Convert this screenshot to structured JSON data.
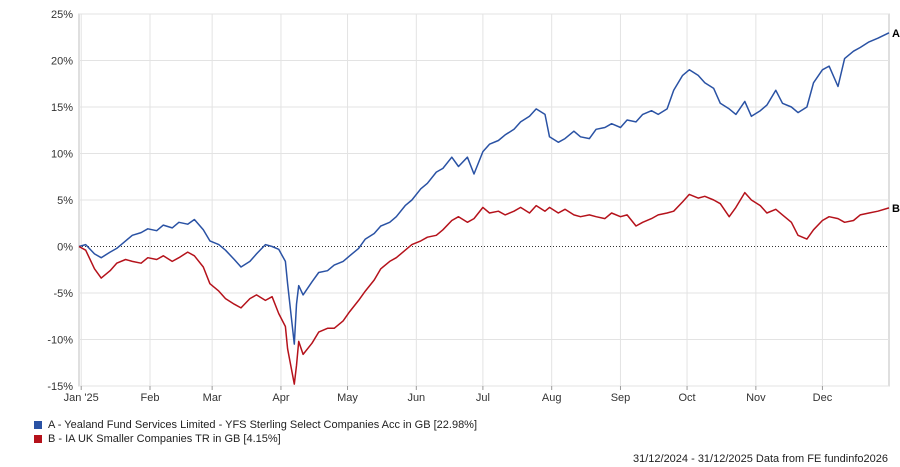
{
  "chart_data": {
    "type": "line",
    "ylim": [
      -15,
      25
    ],
    "y_ticks": [
      "-15%",
      "-10%",
      "-5%",
      "0%",
      "5%",
      "10%",
      "15%",
      "20%",
      "25%"
    ],
    "y_tick_values": [
      -15,
      -10,
      -5,
      0,
      5,
      10,
      15,
      20,
      25
    ],
    "x_ticks": [
      "Jan '25",
      "Feb",
      "Mar",
      "Apr",
      "May",
      "Jun",
      "Jul",
      "Aug",
      "Sep",
      "Oct",
      "Nov",
      "Dec"
    ],
    "x_tick_dates": [
      "2025-01-01",
      "2025-02-01",
      "2025-03-01",
      "2025-04-01",
      "2025-05-01",
      "2025-06-01",
      "2025-07-01",
      "2025-08-01",
      "2025-09-01",
      "2025-10-01",
      "2025-11-01",
      "2025-12-01"
    ],
    "xlim": [
      "2024-12-31",
      "2025-12-31"
    ],
    "grid": true,
    "legend_position": "bottom-left",
    "series": [
      {
        "name": "A - Yealand Fund Services Limited - YFS Sterling Select Companies Acc in GB [22.98%]",
        "end_label": "A",
        "color": "#2a52a4",
        "points": [
          [
            "2024-12-31",
            0.0
          ],
          [
            "2025-01-03",
            0.2
          ],
          [
            "2025-01-07",
            -0.8
          ],
          [
            "2025-01-10",
            -1.2
          ],
          [
            "2025-01-14",
            -0.6
          ],
          [
            "2025-01-17",
            -0.2
          ],
          [
            "2025-01-21",
            0.6
          ],
          [
            "2025-01-24",
            1.2
          ],
          [
            "2025-01-28",
            1.5
          ],
          [
            "2025-01-31",
            1.9
          ],
          [
            "2025-02-04",
            1.7
          ],
          [
            "2025-02-07",
            2.3
          ],
          [
            "2025-02-11",
            2.0
          ],
          [
            "2025-02-14",
            2.6
          ],
          [
            "2025-02-18",
            2.4
          ],
          [
            "2025-02-21",
            2.9
          ],
          [
            "2025-02-25",
            1.8
          ],
          [
            "2025-02-28",
            0.6
          ],
          [
            "2025-03-04",
            0.2
          ],
          [
            "2025-03-07",
            -0.4
          ],
          [
            "2025-03-11",
            -1.4
          ],
          [
            "2025-03-14",
            -2.2
          ],
          [
            "2025-03-18",
            -1.6
          ],
          [
            "2025-03-21",
            -0.8
          ],
          [
            "2025-03-25",
            0.2
          ],
          [
            "2025-03-28",
            0.0
          ],
          [
            "2025-03-31",
            -0.3
          ],
          [
            "2025-04-03",
            -1.6
          ],
          [
            "2025-04-04",
            -4.0
          ],
          [
            "2025-04-07",
            -10.5
          ],
          [
            "2025-04-08",
            -6.2
          ],
          [
            "2025-04-09",
            -4.2
          ],
          [
            "2025-04-11",
            -5.2
          ],
          [
            "2025-04-15",
            -3.8
          ],
          [
            "2025-04-18",
            -2.8
          ],
          [
            "2025-04-22",
            -2.6
          ],
          [
            "2025-04-25",
            -2.0
          ],
          [
            "2025-04-29",
            -1.6
          ],
          [
            "2025-05-02",
            -1.0
          ],
          [
            "2025-05-06",
            -0.2
          ],
          [
            "2025-05-09",
            0.8
          ],
          [
            "2025-05-13",
            1.4
          ],
          [
            "2025-05-16",
            2.2
          ],
          [
            "2025-05-20",
            2.6
          ],
          [
            "2025-05-23",
            3.2
          ],
          [
            "2025-05-27",
            4.4
          ],
          [
            "2025-05-30",
            5.0
          ],
          [
            "2025-06-03",
            6.2
          ],
          [
            "2025-06-06",
            6.8
          ],
          [
            "2025-06-10",
            8.0
          ],
          [
            "2025-06-13",
            8.4
          ],
          [
            "2025-06-17",
            9.6
          ],
          [
            "2025-06-20",
            8.6
          ],
          [
            "2025-06-24",
            9.6
          ],
          [
            "2025-06-27",
            7.8
          ],
          [
            "2025-07-01",
            10.2
          ],
          [
            "2025-07-04",
            11.0
          ],
          [
            "2025-07-08",
            11.4
          ],
          [
            "2025-07-11",
            12.0
          ],
          [
            "2025-07-15",
            12.6
          ],
          [
            "2025-07-18",
            13.4
          ],
          [
            "2025-07-22",
            14.0
          ],
          [
            "2025-07-25",
            14.8
          ],
          [
            "2025-07-29",
            14.2
          ],
          [
            "2025-07-31",
            11.8
          ],
          [
            "2025-08-04",
            11.2
          ],
          [
            "2025-08-07",
            11.6
          ],
          [
            "2025-08-11",
            12.4
          ],
          [
            "2025-08-14",
            11.8
          ],
          [
            "2025-08-18",
            11.6
          ],
          [
            "2025-08-21",
            12.6
          ],
          [
            "2025-08-25",
            12.8
          ],
          [
            "2025-08-28",
            13.2
          ],
          [
            "2025-09-01",
            12.8
          ],
          [
            "2025-09-04",
            13.6
          ],
          [
            "2025-09-08",
            13.4
          ],
          [
            "2025-09-11",
            14.2
          ],
          [
            "2025-09-15",
            14.6
          ],
          [
            "2025-09-18",
            14.2
          ],
          [
            "2025-09-22",
            14.8
          ],
          [
            "2025-09-25",
            16.8
          ],
          [
            "2025-09-29",
            18.4
          ],
          [
            "2025-10-02",
            19.0
          ],
          [
            "2025-10-06",
            18.4
          ],
          [
            "2025-10-09",
            17.6
          ],
          [
            "2025-10-13",
            17.0
          ],
          [
            "2025-10-16",
            15.4
          ],
          [
            "2025-10-20",
            14.8
          ],
          [
            "2025-10-23",
            14.2
          ],
          [
            "2025-10-27",
            15.6
          ],
          [
            "2025-10-30",
            14.0
          ],
          [
            "2025-11-03",
            14.6
          ],
          [
            "2025-11-06",
            15.2
          ],
          [
            "2025-11-10",
            16.8
          ],
          [
            "2025-11-13",
            15.4
          ],
          [
            "2025-11-17",
            15.0
          ],
          [
            "2025-11-20",
            14.4
          ],
          [
            "2025-11-24",
            15.0
          ],
          [
            "2025-11-27",
            17.6
          ],
          [
            "2025-12-01",
            19.0
          ],
          [
            "2025-12-04",
            19.4
          ],
          [
            "2025-12-08",
            17.2
          ],
          [
            "2025-12-11",
            20.2
          ],
          [
            "2025-12-15",
            21.0
          ],
          [
            "2025-12-18",
            21.4
          ],
          [
            "2025-12-22",
            22.0
          ],
          [
            "2025-12-26",
            22.4
          ],
          [
            "2025-12-31",
            22.98
          ]
        ]
      },
      {
        "name": "B - IA UK Smaller Companies TR in GB [4.15%]",
        "end_label": "B",
        "color": "#b5121b",
        "points": [
          [
            "2024-12-31",
            0.0
          ],
          [
            "2025-01-03",
            -0.4
          ],
          [
            "2025-01-07",
            -2.4
          ],
          [
            "2025-01-10",
            -3.4
          ],
          [
            "2025-01-14",
            -2.6
          ],
          [
            "2025-01-17",
            -1.8
          ],
          [
            "2025-01-21",
            -1.4
          ],
          [
            "2025-01-24",
            -1.6
          ],
          [
            "2025-01-28",
            -1.8
          ],
          [
            "2025-01-31",
            -1.2
          ],
          [
            "2025-02-04",
            -1.4
          ],
          [
            "2025-02-07",
            -1.0
          ],
          [
            "2025-02-11",
            -1.6
          ],
          [
            "2025-02-14",
            -1.2
          ],
          [
            "2025-02-18",
            -0.6
          ],
          [
            "2025-02-21",
            -1.0
          ],
          [
            "2025-02-25",
            -2.2
          ],
          [
            "2025-02-28",
            -4.0
          ],
          [
            "2025-03-04",
            -4.8
          ],
          [
            "2025-03-07",
            -5.6
          ],
          [
            "2025-03-11",
            -6.2
          ],
          [
            "2025-03-14",
            -6.6
          ],
          [
            "2025-03-18",
            -5.6
          ],
          [
            "2025-03-21",
            -5.2
          ],
          [
            "2025-03-25",
            -5.8
          ],
          [
            "2025-03-28",
            -5.4
          ],
          [
            "2025-03-31",
            -7.2
          ],
          [
            "2025-04-03",
            -8.6
          ],
          [
            "2025-04-04",
            -11.0
          ],
          [
            "2025-04-07",
            -14.8
          ],
          [
            "2025-04-08",
            -12.8
          ],
          [
            "2025-04-09",
            -10.2
          ],
          [
            "2025-04-11",
            -11.6
          ],
          [
            "2025-04-15",
            -10.4
          ],
          [
            "2025-04-18",
            -9.2
          ],
          [
            "2025-04-22",
            -8.8
          ],
          [
            "2025-04-25",
            -8.8
          ],
          [
            "2025-04-29",
            -8.0
          ],
          [
            "2025-05-02",
            -7.0
          ],
          [
            "2025-05-06",
            -5.8
          ],
          [
            "2025-05-09",
            -4.8
          ],
          [
            "2025-05-13",
            -3.6
          ],
          [
            "2025-05-16",
            -2.4
          ],
          [
            "2025-05-20",
            -1.6
          ],
          [
            "2025-05-23",
            -1.2
          ],
          [
            "2025-05-27",
            -0.4
          ],
          [
            "2025-05-30",
            0.2
          ],
          [
            "2025-06-03",
            0.6
          ],
          [
            "2025-06-06",
            1.0
          ],
          [
            "2025-06-10",
            1.2
          ],
          [
            "2025-06-13",
            1.8
          ],
          [
            "2025-06-17",
            2.8
          ],
          [
            "2025-06-20",
            3.2
          ],
          [
            "2025-06-24",
            2.6
          ],
          [
            "2025-06-27",
            3.0
          ],
          [
            "2025-07-01",
            4.2
          ],
          [
            "2025-07-04",
            3.6
          ],
          [
            "2025-07-08",
            3.8
          ],
          [
            "2025-07-11",
            3.4
          ],
          [
            "2025-07-15",
            3.8
          ],
          [
            "2025-07-18",
            4.2
          ],
          [
            "2025-07-22",
            3.6
          ],
          [
            "2025-07-25",
            4.4
          ],
          [
            "2025-07-29",
            3.8
          ],
          [
            "2025-07-31",
            4.2
          ],
          [
            "2025-08-04",
            3.6
          ],
          [
            "2025-08-07",
            4.0
          ],
          [
            "2025-08-11",
            3.4
          ],
          [
            "2025-08-14",
            3.2
          ],
          [
            "2025-08-18",
            3.4
          ],
          [
            "2025-08-21",
            3.2
          ],
          [
            "2025-08-25",
            3.0
          ],
          [
            "2025-08-28",
            3.6
          ],
          [
            "2025-09-01",
            3.2
          ],
          [
            "2025-09-04",
            3.4
          ],
          [
            "2025-09-08",
            2.2
          ],
          [
            "2025-09-11",
            2.6
          ],
          [
            "2025-09-15",
            3.0
          ],
          [
            "2025-09-18",
            3.4
          ],
          [
            "2025-09-22",
            3.6
          ],
          [
            "2025-09-25",
            3.8
          ],
          [
            "2025-09-29",
            4.8
          ],
          [
            "2025-10-02",
            5.6
          ],
          [
            "2025-10-06",
            5.2
          ],
          [
            "2025-10-09",
            5.4
          ],
          [
            "2025-10-13",
            5.0
          ],
          [
            "2025-10-16",
            4.6
          ],
          [
            "2025-10-20",
            3.2
          ],
          [
            "2025-10-23",
            4.2
          ],
          [
            "2025-10-27",
            5.8
          ],
          [
            "2025-10-30",
            5.0
          ],
          [
            "2025-11-03",
            4.4
          ],
          [
            "2025-11-06",
            3.6
          ],
          [
            "2025-11-10",
            4.0
          ],
          [
            "2025-11-13",
            3.4
          ],
          [
            "2025-11-17",
            2.6
          ],
          [
            "2025-11-20",
            1.2
          ],
          [
            "2025-11-24",
            0.8
          ],
          [
            "2025-11-27",
            1.8
          ],
          [
            "2025-12-01",
            2.8
          ],
          [
            "2025-12-04",
            3.2
          ],
          [
            "2025-12-08",
            3.0
          ],
          [
            "2025-12-11",
            2.6
          ],
          [
            "2025-12-15",
            2.8
          ],
          [
            "2025-12-18",
            3.4
          ],
          [
            "2025-12-22",
            3.6
          ],
          [
            "2025-12-26",
            3.8
          ],
          [
            "2025-12-31",
            4.15
          ]
        ]
      }
    ]
  },
  "legend": {
    "a_color": "#2a52a4",
    "b_color": "#b5121b",
    "a_text": "A - Yealand Fund Services Limited - YFS Sterling Select Companies Acc in GB [22.98%]",
    "b_text": "B - IA UK Smaller Companies TR in GB [4.15%]"
  },
  "footer": {
    "text": "31/12/2024 - 31/12/2025 Data from FE fundinfo2026"
  }
}
